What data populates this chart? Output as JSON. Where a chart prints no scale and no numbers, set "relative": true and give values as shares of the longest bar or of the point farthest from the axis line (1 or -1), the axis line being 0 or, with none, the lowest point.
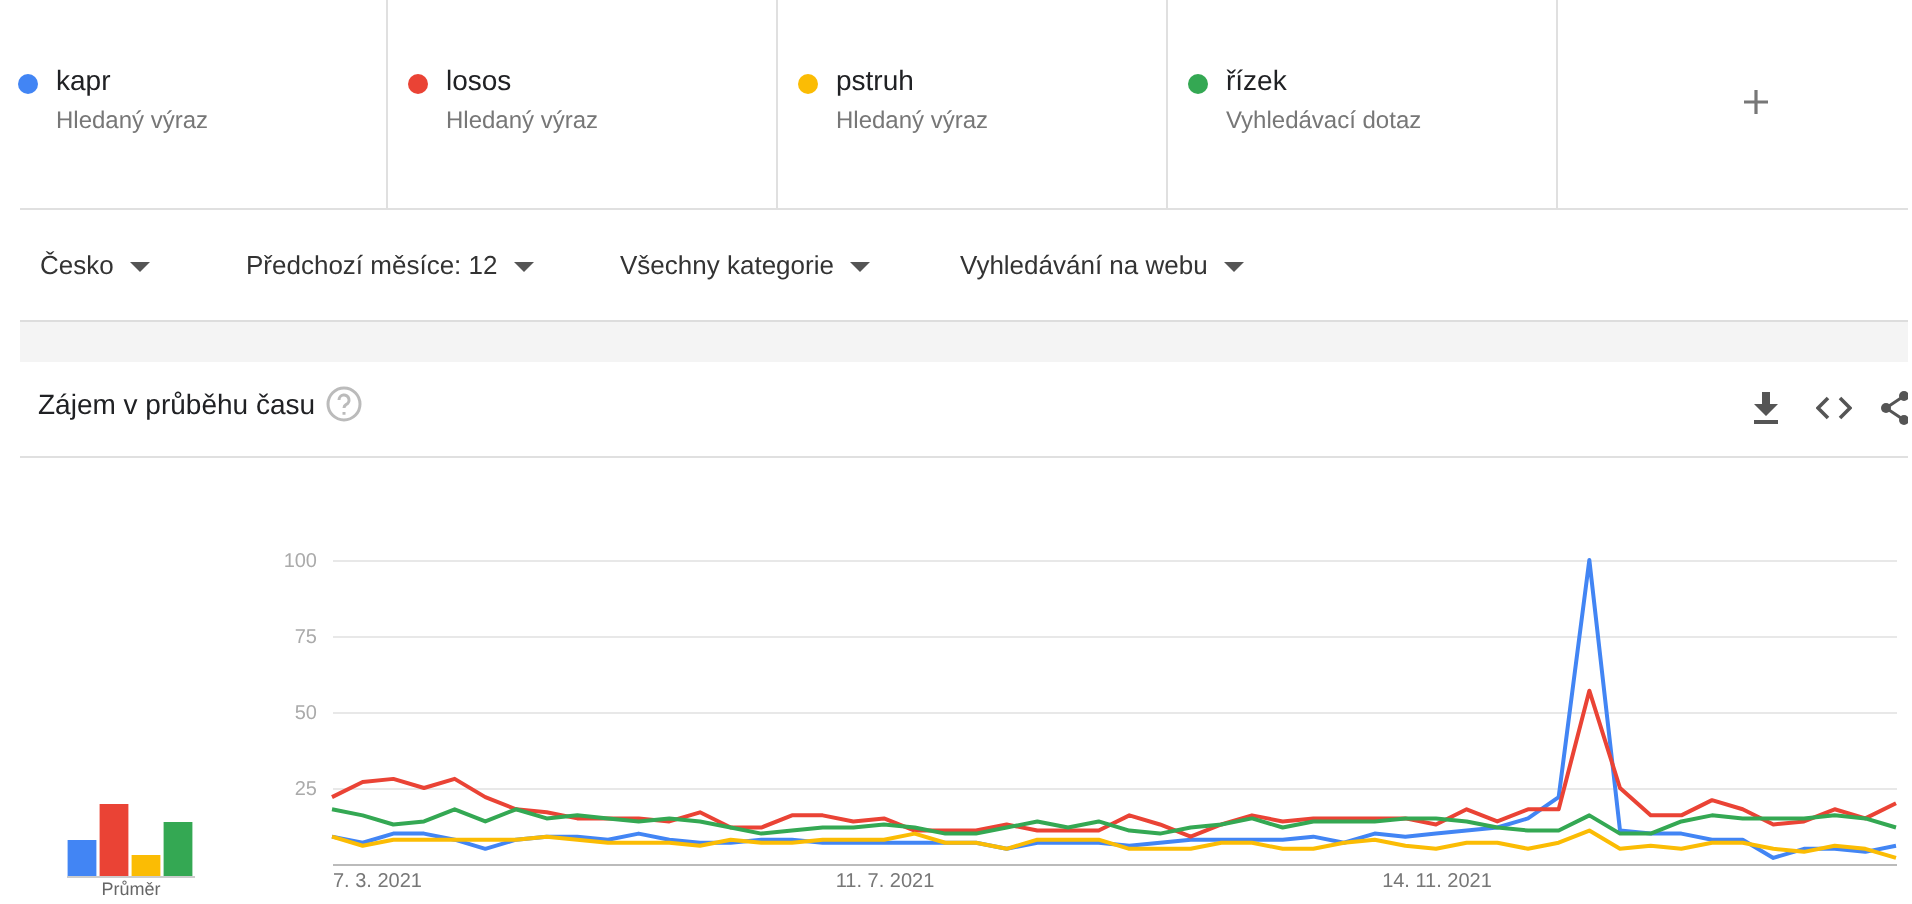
{
  "chart_data": [
    {
      "type": "line",
      "title": "Zájem v průběhu času",
      "legend": "top",
      "grid": "y",
      "annotations": [
        "Hledaný výraz",
        "Hledaný výraz",
        "Hledaný výraz",
        "Vyhledávací dotaz",
        "Česko",
        "Předchozí měsíce: 12",
        "Všechny kategorie",
        "Vyhledávání na webu"
      ],
      "x": [
        "2021-03-07",
        "2021-03-14",
        "2021-03-21",
        "2021-03-28",
        "2021-04-04",
        "2021-04-11",
        "2021-04-18",
        "2021-04-25",
        "2021-05-02",
        "2021-05-09",
        "2021-05-16",
        "2021-05-23",
        "2021-05-30",
        "2021-06-06",
        "2021-06-13",
        "2021-06-20",
        "2021-06-27",
        "2021-07-04",
        "2021-07-11",
        "2021-07-18",
        "2021-07-25",
        "2021-08-01",
        "2021-08-08",
        "2021-08-15",
        "2021-08-22",
        "2021-08-29",
        "2021-09-05",
        "2021-09-12",
        "2021-09-19",
        "2021-09-26",
        "2021-10-03",
        "2021-10-10",
        "2021-10-17",
        "2021-10-24",
        "2021-10-31",
        "2021-11-07",
        "2021-11-14",
        "2021-11-21",
        "2021-11-28",
        "2021-12-05",
        "2021-12-12",
        "2021-12-19",
        "2021-12-26",
        "2022-01-02",
        "2022-01-09",
        "2022-01-16",
        "2022-01-23",
        "2022-01-30",
        "2022-02-06",
        "2022-02-13",
        "2022-02-20",
        "2022-02-27"
      ],
      "xlim": [
        "2021-03-07",
        "2022-02-27"
      ],
      "xticks": [
        {
          "value": "2021-03-07",
          "label": "7. 3. 2021"
        },
        {
          "value": "2021-07-11",
          "label": "11. 7. 2021"
        },
        {
          "value": "2021-11-14",
          "label": "14. 11. 2021"
        }
      ],
      "ylim": [
        0,
        100
      ],
      "yticks": [
        25,
        50,
        75,
        100
      ],
      "series": [
        {
          "name": "kapr",
          "color": "#4285f4",
          "values": [
            9,
            7,
            10,
            10,
            8,
            5,
            8,
            9,
            9,
            8,
            10,
            8,
            7,
            7,
            8,
            8,
            7,
            7,
            7,
            7,
            7,
            7,
            5,
            7,
            7,
            7,
            6,
            7,
            8,
            8,
            8,
            8,
            9,
            7,
            10,
            9,
            10,
            11,
            12,
            15,
            22,
            100,
            11,
            10,
            10,
            8,
            8,
            2,
            5,
            5,
            4,
            6
          ]
        },
        {
          "name": "losos",
          "color": "#ea4335",
          "values": [
            22,
            27,
            28,
            25,
            28,
            22,
            18,
            17,
            15,
            15,
            15,
            14,
            17,
            12,
            12,
            16,
            16,
            14,
            15,
            11,
            11,
            11,
            13,
            11,
            11,
            11,
            16,
            13,
            9,
            13,
            16,
            14,
            15,
            15,
            15,
            15,
            13,
            18,
            14,
            18,
            18,
            57,
            25,
            16,
            16,
            21,
            18,
            13,
            14,
            18,
            15,
            20
          ]
        },
        {
          "name": "pstruh",
          "color": "#fbbc04",
          "values": [
            9,
            6,
            8,
            8,
            8,
            8,
            8,
            9,
            8,
            7,
            7,
            7,
            6,
            8,
            7,
            7,
            8,
            8,
            8,
            10,
            7,
            7,
            5,
            8,
            8,
            8,
            5,
            5,
            5,
            7,
            7,
            5,
            5,
            7,
            8,
            6,
            5,
            7,
            7,
            5,
            7,
            11,
            5,
            6,
            5,
            7,
            7,
            5,
            4,
            6,
            5,
            2
          ]
        },
        {
          "name": "řízek",
          "color": "#34a853",
          "values": [
            18,
            16,
            13,
            14,
            18,
            14,
            18,
            15,
            16,
            15,
            14,
            15,
            14,
            12,
            10,
            11,
            12,
            12,
            13,
            12,
            10,
            10,
            12,
            14,
            12,
            14,
            11,
            10,
            12,
            13,
            15,
            12,
            14,
            14,
            14,
            15,
            15,
            14,
            12,
            11,
            11,
            16,
            10,
            10,
            14,
            16,
            15,
            15,
            15,
            16,
            15,
            12
          ]
        }
      ]
    },
    {
      "type": "bar",
      "relative": true,
      "xlabel": "Průměr",
      "categories": [
        null,
        null,
        null,
        null
      ],
      "values": [
        0.5,
        1,
        0.29,
        0.75
      ],
      "colors": [
        "#4285f4",
        "#ea4335",
        "#fbbc04",
        "#34a853"
      ]
    }
  ]
}
